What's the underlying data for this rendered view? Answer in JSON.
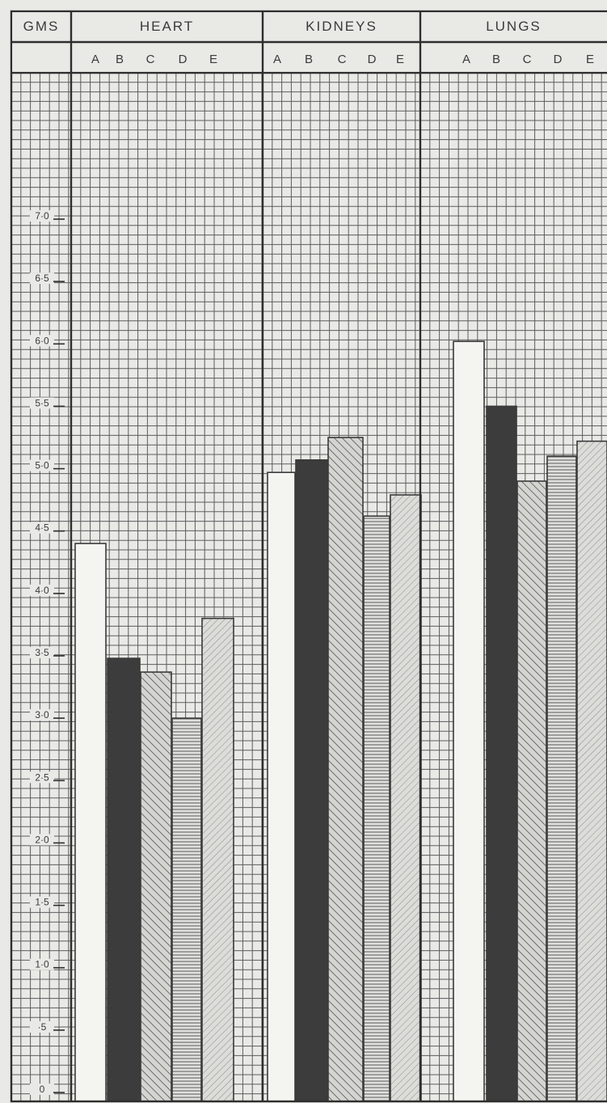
{
  "colors": {
    "background": "#e9e9e6",
    "grid": "#444444",
    "bar_A": "#f4f4f1",
    "bar_B": "#3c3c3c",
    "bar_C": "#c9c9c6",
    "bar_D": "#dcdcd9",
    "bar_E": "#d8d8d5"
  },
  "chart_data": {
    "type": "bar",
    "ylabel": "GMS",
    "ylim": [
      0,
      8.2
    ],
    "yticks": [
      "0",
      "·5",
      "1·0",
      "1·5",
      "2·0",
      "2·5",
      "3·0",
      "3·5",
      "4·0",
      "4·5",
      "5·0",
      "5·5",
      "6·0",
      "6·5",
      "7·0"
    ],
    "ytick_values": [
      0,
      0.5,
      1.0,
      1.5,
      2.0,
      2.5,
      3.0,
      3.5,
      4.0,
      4.5,
      5.0,
      5.5,
      6.0,
      6.5,
      7.0
    ],
    "categories": [
      "A",
      "B",
      "C",
      "D",
      "E"
    ],
    "groups": [
      {
        "name": "HEART",
        "values": [
          4.4,
          3.48,
          3.37,
          3.0,
          3.8
        ]
      },
      {
        "name": "KIDNEYS",
        "values": [
          4.97,
          5.07,
          5.25,
          4.62,
          4.79
        ]
      },
      {
        "name": "LUNGS",
        "values": [
          6.02,
          5.5,
          4.9,
          5.1,
          5.22
        ]
      }
    ],
    "grid": true,
    "legend": "none"
  }
}
